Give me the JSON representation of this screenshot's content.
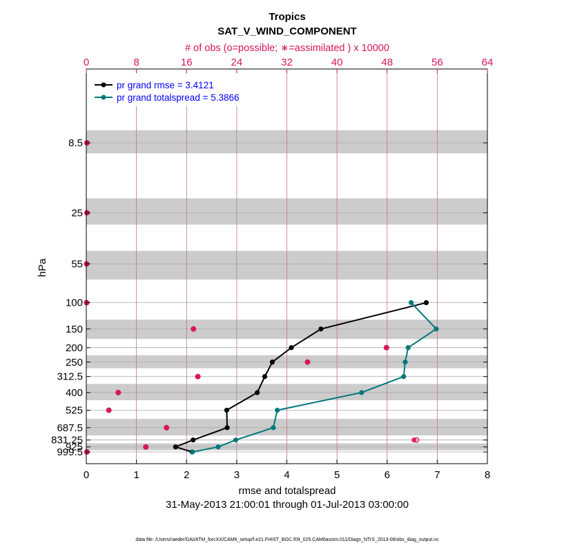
{
  "chart_data": {
    "type": "line",
    "title": "Tropics",
    "subtitle": "SAT_V_WIND_COMPONENT",
    "top_axis_label": "# of obs (o=possible; ∗=assimilated ) x 10000",
    "top_ticks": [
      "0",
      "8",
      "16",
      "24",
      "32",
      "40",
      "48",
      "56",
      "64"
    ],
    "top_lim": [
      0,
      64
    ],
    "xlabel": "rmse and totalspread",
    "x_ticks": [
      "0",
      "1",
      "2",
      "3",
      "4",
      "5",
      "6",
      "7",
      "8"
    ],
    "xlim": [
      0,
      8
    ],
    "ylabel": "hPa",
    "y_ticks": [
      "8.5",
      "25",
      "55",
      "100",
      "150",
      "200",
      "250",
      "312.5",
      "400",
      "525",
      "687.5",
      "831.25",
      "925",
      "999.5"
    ],
    "y_scale": "log, inverted",
    "date_range": "31-May-2013 21:00:01 through 01-Jul-2013 03:00:00",
    "footer": "data file: /Users/raeder/DAI/ATM_forcXX/CAM6_setup/f.e21.FHIST_BGC.f09_025.CAM6assim.011/Diags_NTrS_2013-06/obs_diag_output.nc",
    "legend_position": "top-left",
    "colors": {
      "rmse": "#000000",
      "spread": "#00787a",
      "obs": "#d6145a",
      "band": "#cccccc",
      "grid": "#b0b0b0"
    },
    "bands": [
      [
        7,
        10
      ],
      [
        20,
        30
      ],
      [
        45,
        70
      ],
      [
        130,
        175
      ],
      [
        225,
        275
      ],
      [
        350,
        450
      ],
      [
        600,
        775
      ],
      [
        875,
        975
      ]
    ],
    "series": [
      {
        "name": "pr grand rmse = 3.4121",
        "pressure": [
          100,
          150,
          200,
          250,
          312.5,
          400,
          525,
          687.5,
          831.25,
          925,
          999.5
        ],
        "values": [
          6.78,
          4.68,
          4.09,
          3.71,
          3.56,
          3.41,
          2.8,
          2.81,
          2.13,
          1.78,
          2.11
        ]
      },
      {
        "name": "pr grand totalspread = 5.3866",
        "pressure": [
          100,
          150,
          200,
          250,
          312.5,
          400,
          525,
          687.5,
          831.25,
          925,
          999.5
        ],
        "values": [
          6.48,
          6.98,
          6.42,
          6.36,
          6.33,
          5.49,
          3.81,
          3.73,
          2.98,
          2.63,
          2.12
        ]
      }
    ],
    "obs_counts": {
      "pressure": [
        8.5,
        25,
        55,
        100,
        150,
        200,
        250,
        312.5,
        400,
        525,
        687.5,
        831.25,
        925,
        999.5
      ],
      "possible": [
        0.1,
        0.1,
        0.05,
        0.05,
        17.1,
        47.9,
        35.3,
        17.8,
        5.1,
        3.6,
        12.8,
        52.7,
        9.5,
        0.1
      ],
      "assimilated": [
        0.1,
        0.1,
        0.05,
        0.05,
        17.1,
        47.9,
        35.3,
        17.8,
        5.1,
        3.6,
        12.8,
        52.3,
        9.5,
        0.1
      ]
    }
  }
}
